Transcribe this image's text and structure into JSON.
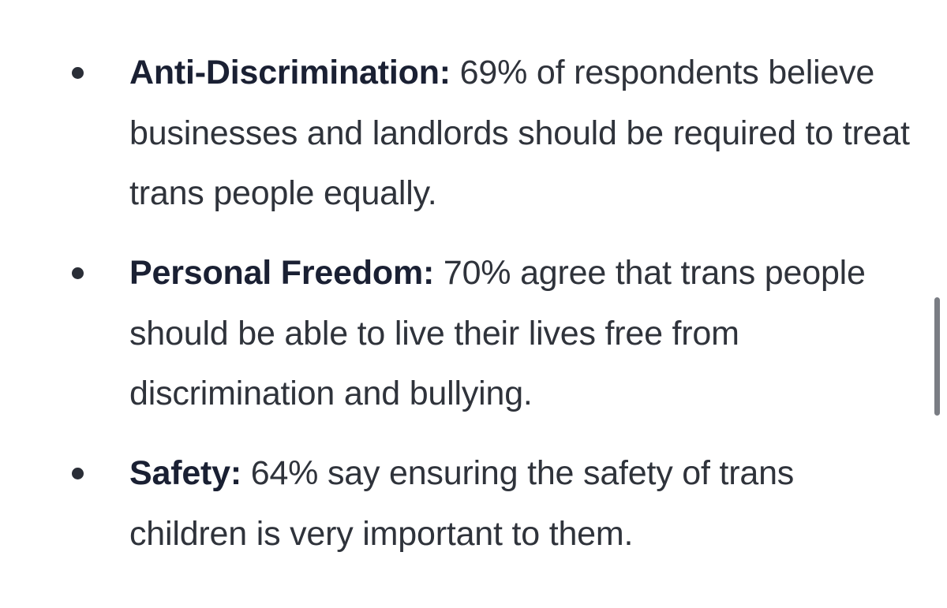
{
  "items": [
    {
      "heading": "Anti-Discrimination:",
      "text": " 69% of respondents believe businesses and landlords should be required to treat trans people equally."
    },
    {
      "heading": "Personal Freedom:",
      "text": " 70% agree that trans people should be able to live their lives free from discrimination and bullying."
    },
    {
      "heading": "Safety:",
      "text": " 64% say ensuring the safety of trans children is very important to them."
    }
  ]
}
